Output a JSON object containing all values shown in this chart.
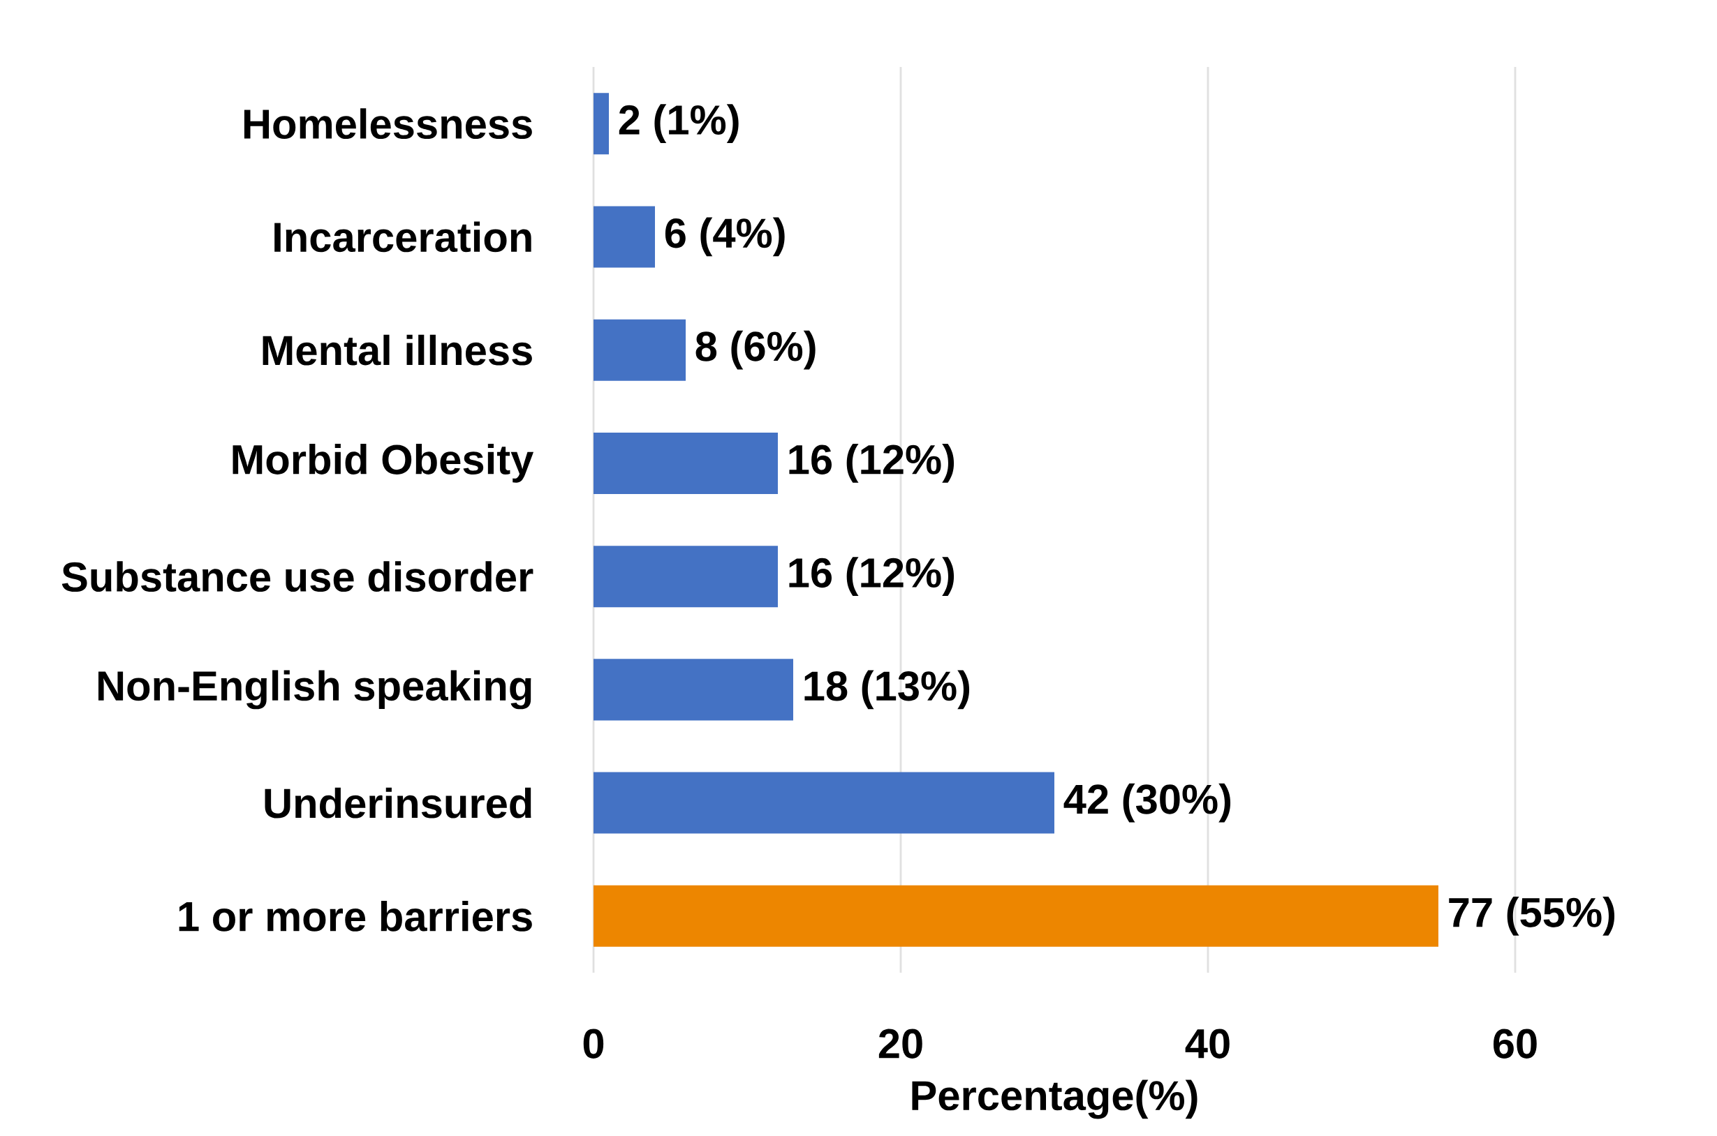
{
  "chart_data": {
    "type": "bar",
    "orientation": "horizontal",
    "categories": [
      "Homelessness",
      "Incarceration",
      "Mental illness",
      "Morbid Obesity",
      "Substance use disorder",
      "Non-English speaking",
      "Underinsured",
      "1 or more barriers"
    ],
    "values": [
      1,
      4,
      6,
      12,
      12,
      13,
      30,
      55
    ],
    "colors": [
      "#4472c4",
      "#4472c4",
      "#4472c4",
      "#4472c4",
      "#4472c4",
      "#4472c4",
      "#4472c4",
      "#ed8600"
    ],
    "value_labels": [
      "2 (1%)",
      "6 (4%)",
      "8 (6%)",
      "16 (12%)",
      "16 (12%)",
      "18 (13%)",
      "42 (30%)",
      "77 (55%)"
    ],
    "xlim": [
      0,
      60
    ],
    "xticks": [
      0,
      20,
      40,
      60
    ],
    "xlabel": "Percentage(%)",
    "grid": "x"
  }
}
